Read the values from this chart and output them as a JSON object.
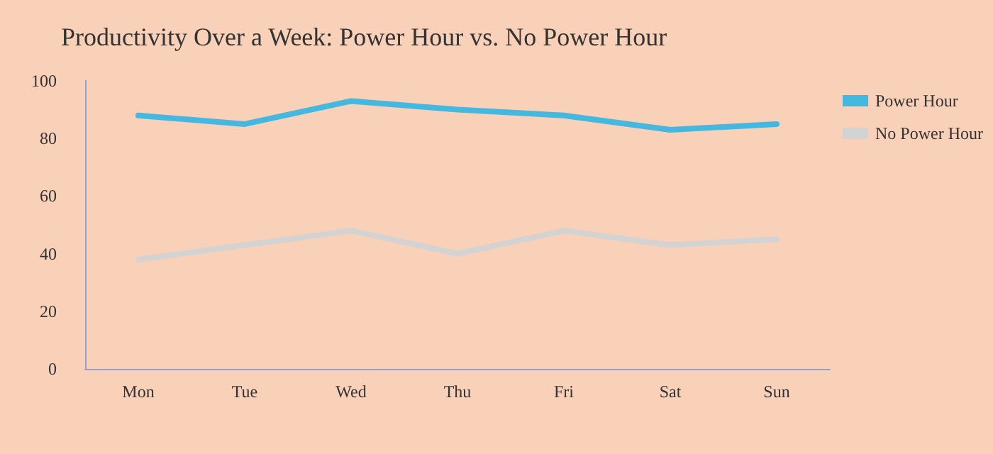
{
  "chart_data": {
    "type": "line",
    "title": "Productivity Over a Week: Power Hour vs. No Power Hour",
    "categories": [
      "Mon",
      "Tue",
      "Wed",
      "Thu",
      "Fri",
      "Sat",
      "Sun"
    ],
    "series": [
      {
        "name": "Power Hour",
        "color": "#45b8e0",
        "values": [
          88,
          85,
          93,
          90,
          88,
          83,
          85
        ]
      },
      {
        "name": "No Power Hour",
        "color": "#d3d3d3",
        "values": [
          38,
          43,
          48,
          40,
          48,
          43,
          45
        ]
      }
    ],
    "ylim": [
      0,
      100
    ],
    "yticks": [
      0,
      20,
      40,
      60,
      80,
      100
    ],
    "grid": false,
    "legend": "top right",
    "marker": "none",
    "line_style": "solid"
  }
}
